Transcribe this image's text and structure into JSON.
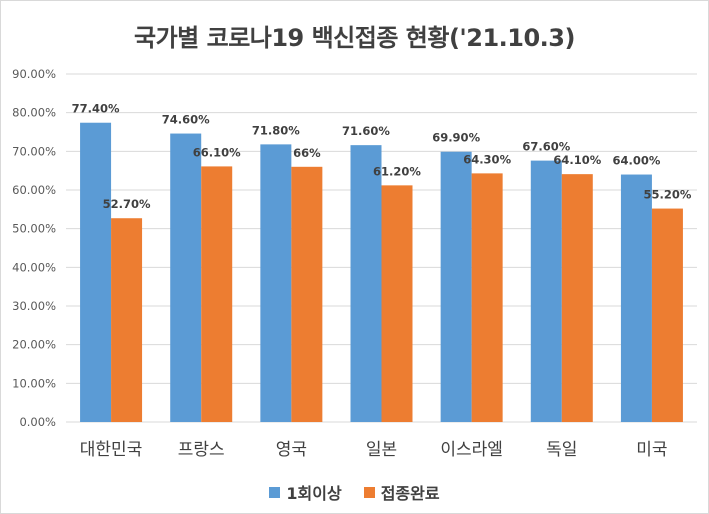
{
  "chart_data": {
    "type": "bar",
    "title": "국가별 코로나19 백신접종 현황('21.10.3)",
    "categories": [
      "대한민국",
      "프랑스",
      "영국",
      "일본",
      "이스라엘",
      "독일",
      "미국"
    ],
    "series": [
      {
        "name": "1회이상",
        "color": "#5b9bd5",
        "values": [
          77.4,
          74.6,
          71.8,
          71.6,
          69.9,
          67.6,
          64.0
        ],
        "labels": [
          "77.40%",
          "74.60%",
          "71.80%",
          "71.60%",
          "69.90%",
          "67.60%",
          "64.00%"
        ]
      },
      {
        "name": "접종완료",
        "color": "#ed7d31",
        "values": [
          52.7,
          66.1,
          66.0,
          61.2,
          64.3,
          64.1,
          55.2
        ],
        "labels": [
          "52.70%",
          "66.10%",
          "66%",
          "61.20%",
          "64.30%",
          "64.10%",
          "55.20%"
        ]
      }
    ],
    "ylim": [
      0,
      90
    ],
    "yticks": [
      "0.00%",
      "10.00%",
      "20.00%",
      "30.00%",
      "40.00%",
      "50.00%",
      "60.00%",
      "70.00%",
      "80.00%",
      "90.00%"
    ],
    "xlabel": "",
    "ylabel": "",
    "grid": true,
    "legend": "bottom"
  }
}
